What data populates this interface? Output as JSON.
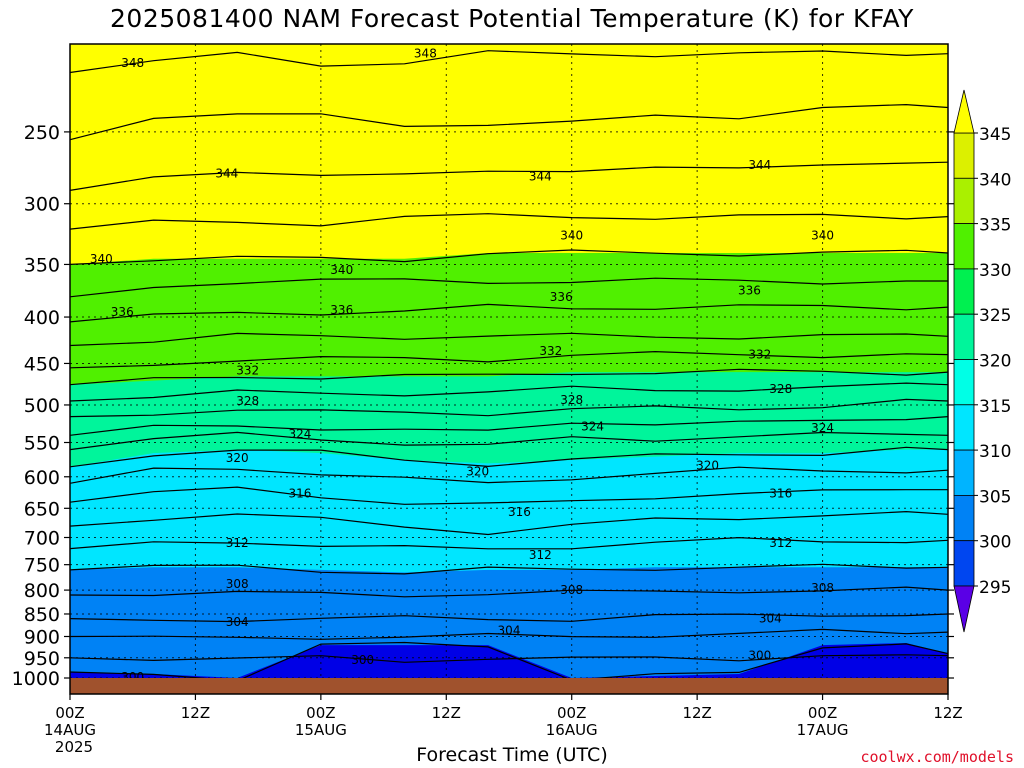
{
  "title": "2025081400 NAM Forecast Potential Temperature (K) for KFAY",
  "xlabel": "Forecast Time (UTC)",
  "credit": "coolwx.com/models",
  "colors": {
    "ground": "#a0522d",
    "band_colors": [
      "#5a00e6",
      "#0000e6",
      "#0046f0",
      "#0082f5",
      "#00b4ff",
      "#00e6ff",
      "#00ffe6",
      "#00f59b",
      "#00f050",
      "#50f000",
      "#aaf000",
      "#dcf000",
      "#ffff00"
    ]
  },
  "chart_data": {
    "type": "heatmap",
    "title": "2025081400 NAM Forecast Potential Temperature (K) for KFAY",
    "xlabel": "Forecast Time (UTC)",
    "ylabel": "",
    "y_scale": "log",
    "ylim": [
      1000,
      200
    ],
    "xlim": [
      "2025-08-14 00Z",
      "2025-08-17 12Z"
    ],
    "x_ticks": [
      {
        "t": "2025-08-14 00Z",
        "lines": [
          "00Z",
          "14AUG",
          "2025"
        ]
      },
      {
        "t": "2025-08-14 12Z",
        "lines": [
          "12Z"
        ]
      },
      {
        "t": "2025-08-15 00Z",
        "lines": [
          "00Z",
          "15AUG"
        ]
      },
      {
        "t": "2025-08-15 12Z",
        "lines": [
          "12Z"
        ]
      },
      {
        "t": "2025-08-16 00Z",
        "lines": [
          "00Z",
          "16AUG"
        ]
      },
      {
        "t": "2025-08-16 12Z",
        "lines": [
          "12Z"
        ]
      },
      {
        "t": "2025-08-17 00Z",
        "lines": [
          "00Z",
          "17AUG"
        ]
      },
      {
        "t": "2025-08-17 12Z",
        "lines": [
          "12Z"
        ]
      }
    ],
    "y_ticks": [
      250,
      300,
      350,
      400,
      450,
      500,
      550,
      600,
      650,
      700,
      750,
      800,
      850,
      900,
      950,
      1000
    ],
    "grid": true,
    "colorbar": {
      "placement": "right",
      "labels": [
        345,
        340,
        335,
        330,
        325,
        320,
        315,
        310,
        305,
        300,
        295
      ],
      "thresholds": [
        295,
        300,
        305,
        310,
        315,
        320,
        325,
        330,
        335,
        340,
        345
      ],
      "extend": "both"
    },
    "contour_interval": 2,
    "contour_levels": [
      300,
      302,
      304,
      306,
      308,
      310,
      312,
      314,
      316,
      318,
      320,
      322,
      324,
      326,
      328,
      330,
      332,
      334,
      336,
      338,
      340,
      342,
      344,
      346,
      348
    ],
    "isotherm_pressure": [
      {
        "theta": 300,
        "p": [
          985,
          990,
          1000,
          920,
          920,
          920,
          1000,
          995,
          990,
          920,
          915,
          940
        ]
      },
      {
        "theta": 302,
        "p": [
          950,
          950,
          955,
          950,
          955,
          950,
          955,
          950,
          950,
          945,
          950,
          945
        ]
      },
      {
        "theta": 304,
        "p": [
          900,
          905,
          905,
          900,
          900,
          900,
          900,
          895,
          895,
          890,
          890,
          890
        ]
      },
      {
        "theta": 306,
        "p": [
          860,
          865,
          860,
          860,
          860,
          860,
          860,
          855,
          855,
          850,
          850,
          850
        ]
      },
      {
        "theta": 308,
        "p": [
          810,
          805,
          805,
          810,
          810,
          805,
          805,
          805,
          800,
          800,
          800,
          800
        ]
      },
      {
        "theta": 310,
        "p": [
          760,
          755,
          755,
          760,
          765,
          760,
          760,
          755,
          755,
          755,
          755,
          755
        ]
      },
      {
        "theta": 312,
        "p": [
          720,
          710,
          705,
          715,
          720,
          720,
          715,
          710,
          705,
          705,
          705,
          705
        ]
      },
      {
        "theta": 314,
        "p": [
          680,
          665,
          660,
          670,
          680,
          690,
          680,
          670,
          665,
          660,
          660,
          660
        ]
      },
      {
        "theta": 316,
        "p": [
          640,
          625,
          620,
          630,
          640,
          645,
          640,
          630,
          625,
          625,
          620,
          620
        ]
      },
      {
        "theta": 318,
        "p": [
          610,
          590,
          585,
          595,
          605,
          610,
          600,
          595,
          590,
          590,
          590,
          590
        ]
      },
      {
        "theta": 320,
        "p": [
          585,
          565,
          560,
          565,
          575,
          580,
          575,
          570,
          565,
          565,
          560,
          560
        ]
      },
      {
        "theta": 322,
        "p": [
          560,
          545,
          540,
          545,
          550,
          555,
          545,
          545,
          540,
          540,
          540,
          540
        ]
      },
      {
        "theta": 324,
        "p": [
          540,
          530,
          525,
          530,
          535,
          535,
          520,
          525,
          525,
          520,
          515,
          515
        ]
      },
      {
        "theta": 326,
        "p": [
          515,
          510,
          505,
          510,
          510,
          510,
          505,
          505,
          505,
          500,
          495,
          495
        ]
      },
      {
        "theta": 328,
        "p": [
          495,
          490,
          485,
          485,
          485,
          485,
          480,
          480,
          480,
          480,
          475,
          475
        ]
      },
      {
        "theta": 330,
        "p": [
          475,
          470,
          465,
          465,
          465,
          465,
          460,
          460,
          460,
          460,
          460,
          460
        ]
      },
      {
        "theta": 332,
        "p": [
          455,
          450,
          445,
          445,
          445,
          445,
          440,
          440,
          440,
          440,
          440,
          440
        ]
      },
      {
        "theta": 334,
        "p": [
          430,
          425,
          420,
          420,
          420,
          420,
          420,
          420,
          420,
          420,
          420,
          420
        ]
      },
      {
        "theta": 336,
        "p": [
          405,
          400,
          395,
          395,
          395,
          390,
          390,
          390,
          390,
          390,
          390,
          390
        ]
      },
      {
        "theta": 338,
        "p": [
          380,
          370,
          365,
          365,
          365,
          365,
          365,
          365,
          365,
          365,
          365,
          365
        ]
      },
      {
        "theta": 340,
        "p": [
          350,
          345,
          345,
          345,
          345,
          340,
          340,
          340,
          340,
          340,
          340,
          340
        ]
      },
      {
        "theta": 342,
        "p": [
          320,
          315,
          315,
          315,
          310,
          310,
          310,
          310,
          310,
          310,
          310,
          310
        ]
      },
      {
        "theta": 344,
        "p": [
          290,
          280,
          275,
          280,
          280,
          275,
          275,
          275,
          275,
          270,
          270,
          270
        ]
      },
      {
        "theta": 346,
        "p": [
          255,
          240,
          240,
          240,
          245,
          245,
          245,
          240,
          240,
          235,
          235,
          235
        ]
      },
      {
        "theta": 348,
        "p": [
          215,
          210,
          205,
          210,
          210,
          205,
          205,
          205,
          205,
          205,
          205,
          205
        ]
      }
    ],
    "isotherm_hours": [
      0,
      8,
      16,
      24,
      32,
      40,
      48,
      56,
      64,
      72,
      80,
      84
    ],
    "contour_labels": [
      {
        "text": "348",
        "t": "2025-08-14 06Z",
        "p": 210
      },
      {
        "text": "348",
        "t": "2025-08-15 10Z",
        "p": 205
      },
      {
        "text": "344",
        "t": "2025-08-14 15Z",
        "p": 278
      },
      {
        "text": "344",
        "t": "2025-08-15 21Z",
        "p": 280
      },
      {
        "text": "344",
        "t": "2025-08-16 18Z",
        "p": 272
      },
      {
        "text": "340",
        "t": "2025-08-14 03Z",
        "p": 345
      },
      {
        "text": "340",
        "t": "2025-08-15 02Z",
        "p": 355
      },
      {
        "text": "340",
        "t": "2025-08-16 00Z",
        "p": 325
      },
      {
        "text": "340",
        "t": "2025-08-17 00Z",
        "p": 325
      },
      {
        "text": "336",
        "t": "2025-08-14 05Z",
        "p": 395
      },
      {
        "text": "336",
        "t": "2025-08-15 02Z",
        "p": 393
      },
      {
        "text": "336",
        "t": "2025-08-15 23Z",
        "p": 380
      },
      {
        "text": "336",
        "t": "2025-08-16 17Z",
        "p": 374
      },
      {
        "text": "332",
        "t": "2025-08-14 17Z",
        "p": 458
      },
      {
        "text": "332",
        "t": "2025-08-15 22Z",
        "p": 436
      },
      {
        "text": "332",
        "t": "2025-08-16 18Z",
        "p": 440
      },
      {
        "text": "328",
        "t": "2025-08-14 17Z",
        "p": 495
      },
      {
        "text": "328",
        "t": "2025-08-15 24Z",
        "p": 494
      },
      {
        "text": "328",
        "t": "2025-08-16 20Z",
        "p": 480
      },
      {
        "text": "324",
        "t": "2025-08-14 22Z",
        "p": 538
      },
      {
        "text": "324",
        "t": "2025-08-16 02Z",
        "p": 528
      },
      {
        "text": "324",
        "t": "2025-08-17 00Z",
        "p": 530
      },
      {
        "text": "320",
        "t": "2025-08-14 16Z",
        "p": 572
      },
      {
        "text": "320",
        "t": "2025-08-15 15Z",
        "p": 592
      },
      {
        "text": "320",
        "t": "2025-08-16 13Z",
        "p": 583
      },
      {
        "text": "316",
        "t": "2025-08-14 22Z",
        "p": 626
      },
      {
        "text": "316",
        "t": "2025-08-15 19Z",
        "p": 656
      },
      {
        "text": "316",
        "t": "2025-08-16 20Z",
        "p": 626
      },
      {
        "text": "312",
        "t": "2025-08-14 16Z",
        "p": 710
      },
      {
        "text": "312",
        "t": "2025-08-15 21Z",
        "p": 732
      },
      {
        "text": "312",
        "t": "2025-08-16 20Z",
        "p": 710
      },
      {
        "text": "308",
        "t": "2025-08-14 16Z",
        "p": 788
      },
      {
        "text": "308",
        "t": "2025-08-16 00Z",
        "p": 800
      },
      {
        "text": "308",
        "t": "2025-08-16 24Z",
        "p": 796
      },
      {
        "text": "304",
        "t": "2025-08-14 16Z",
        "p": 868
      },
      {
        "text": "304",
        "t": "2025-08-15 18Z",
        "p": 886
      },
      {
        "text": "304",
        "t": "2025-08-16 19Z",
        "p": 860
      },
      {
        "text": "300",
        "t": "2025-08-14 06Z",
        "p": 997
      },
      {
        "text": "300",
        "t": "2025-08-15 04Z",
        "p": 955
      },
      {
        "text": "300",
        "t": "2025-08-16 18Z",
        "p": 945
      }
    ]
  }
}
